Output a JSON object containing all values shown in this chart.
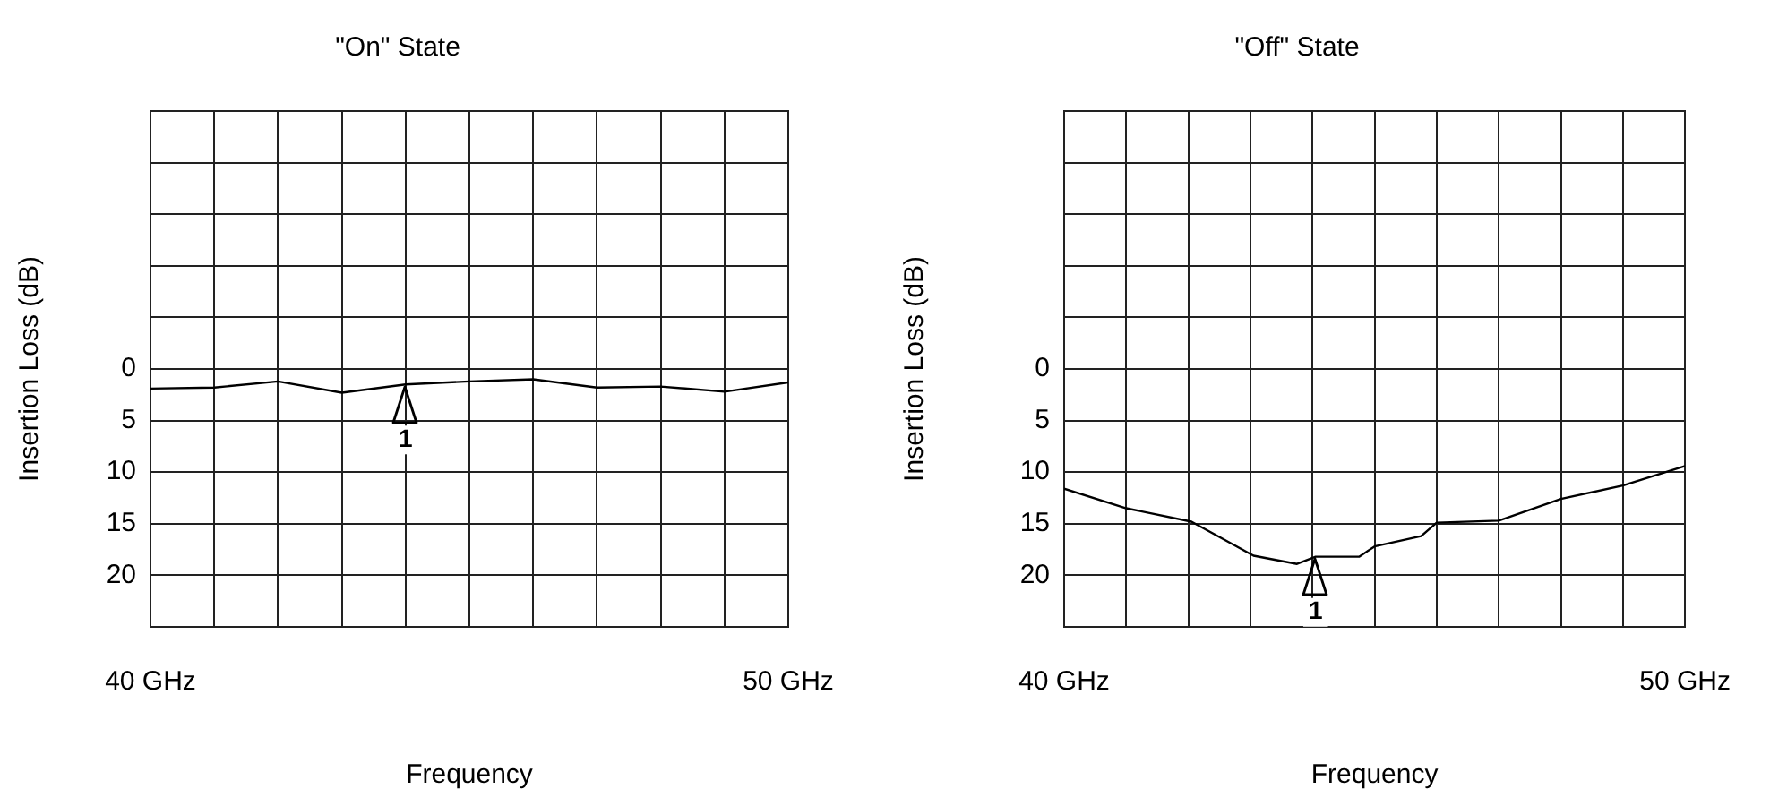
{
  "chart_data": [
    {
      "type": "line",
      "title": "\"On\" State",
      "xlabel": "Frequency",
      "ylabel": "Insertion Loss (dB)",
      "color": "#000000",
      "marker": "none",
      "line_style": "solid",
      "grid": true,
      "x": [
        40,
        41,
        42,
        43,
        44,
        45,
        46,
        47,
        48,
        49,
        50
      ],
      "values": [
        1.9,
        1.8,
        1.2,
        2.3,
        1.5,
        1.2,
        1.0,
        1.8,
        1.7,
        2.2,
        1.3
      ],
      "xlim": [
        40,
        50
      ],
      "xticks": [
        {
          "value": 40,
          "label": "40 GHz"
        },
        {
          "value": 41,
          "label": null
        },
        {
          "value": 42,
          "label": null
        },
        {
          "value": 43,
          "label": null
        },
        {
          "value": 44,
          "label": null
        },
        {
          "value": 45,
          "label": null
        },
        {
          "value": 46,
          "label": null
        },
        {
          "value": 47,
          "label": null
        },
        {
          "value": 48,
          "label": null
        },
        {
          "value": 49,
          "label": null
        },
        {
          "value": 50,
          "label": "50 GHz"
        }
      ],
      "ylim": [
        25,
        -25
      ],
      "yticks": [
        {
          "value": -20,
          "label": null
        },
        {
          "value": -15,
          "label": null
        },
        {
          "value": -10,
          "label": null
        },
        {
          "value": -5,
          "label": null
        },
        0,
        5,
        10,
        15,
        20
      ],
      "annotations": [
        {
          "text": "1",
          "x": 44,
          "y": 1.5
        }
      ]
    },
    {
      "type": "line",
      "title": "\"Off\" State",
      "xlabel": "Frequency",
      "ylabel": "Insertion Loss (dB)",
      "color": "#000000",
      "marker": "none",
      "line_style": "solid",
      "grid": true,
      "x": [
        40,
        41,
        42.05,
        43.05,
        43.75,
        44.05,
        44.75,
        45,
        45.75,
        46,
        47,
        48,
        49,
        50
      ],
      "values": [
        11.6,
        13.5,
        14.8,
        18.1,
        18.9,
        18.2,
        18.2,
        17.2,
        16.2,
        14.9,
        14.7,
        12.6,
        11.3,
        9.4
      ],
      "xlim": [
        40,
        50
      ],
      "xticks": [
        {
          "value": 40,
          "label": "40 GHz"
        },
        {
          "value": 41,
          "label": null
        },
        {
          "value": 42,
          "label": null
        },
        {
          "value": 43,
          "label": null
        },
        {
          "value": 44,
          "label": null
        },
        {
          "value": 45,
          "label": null
        },
        {
          "value": 46,
          "label": null
        },
        {
          "value": 47,
          "label": null
        },
        {
          "value": 48,
          "label": null
        },
        {
          "value": 49,
          "label": null
        },
        {
          "value": 50,
          "label": "50 GHz"
        }
      ],
      "ylim": [
        25,
        -25
      ],
      "yticks": [
        {
          "value": -20,
          "label": null
        },
        {
          "value": -15,
          "label": null
        },
        {
          "value": -10,
          "label": null
        },
        {
          "value": -5,
          "label": null
        },
        0,
        5,
        10,
        15,
        20
      ],
      "annotations": [
        {
          "text": "1",
          "x": 44.05,
          "y": 18.2
        }
      ]
    }
  ]
}
